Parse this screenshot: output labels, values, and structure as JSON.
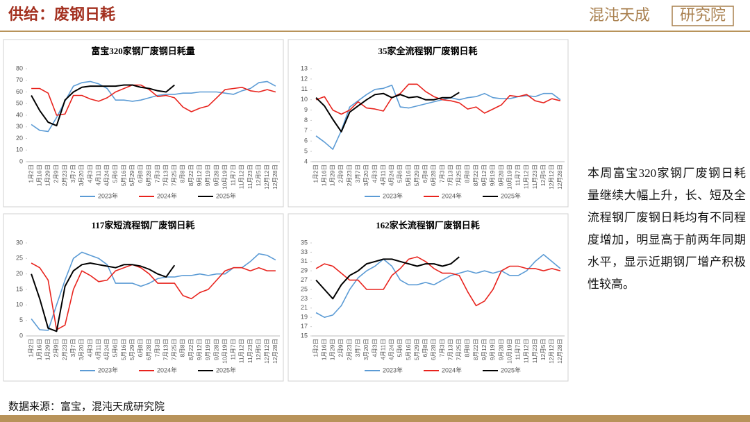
{
  "header": {
    "title": "供给：废钢日耗",
    "logo": "混沌天成",
    "logo_box": "研究院"
  },
  "note": "本周富宝320家钢厂废钢日耗量继续大幅上升，长、短及全流程钢厂废钢日耗均有不同程度增加，明显高于前两年同期水平，显示近期钢厂增产积极性较高。",
  "source": "数据来源：富宝，混沌天成研究院",
  "chart_data": [
    {
      "type": "line",
      "title": "富宝320家钢厂废钢日耗量",
      "categories": [
        "1月2日",
        "1月16日",
        "1月29日",
        "2月9日",
        "2月23日",
        "3月7日",
        "3月20日",
        "4月3日",
        "4月11日",
        "4月24日",
        "5月6日",
        "5月16日",
        "5月29日",
        "6月8日",
        "6月28日",
        "7月3日",
        "7月13日",
        "7月25日",
        "8月8日",
        "8月22日",
        "9月12日",
        "9月19日",
        "9月28日",
        "10月19日",
        "11月7日",
        "11月12日",
        "11月23日",
        "12月5日",
        "12月12日",
        "12月28日"
      ],
      "ylim": [
        0,
        80
      ],
      "yticks": [
        0,
        10,
        20,
        30,
        40,
        50,
        60,
        70,
        80
      ],
      "series": [
        {
          "name": "2023年",
          "color": "#5b9bd5",
          "values": [
            32,
            27,
            26,
            38,
            52,
            65,
            68,
            69,
            67,
            63,
            53,
            53,
            52,
            53,
            55,
            57,
            58,
            58,
            59,
            59,
            60,
            60,
            60,
            59,
            58,
            61,
            63,
            68,
            69,
            65
          ]
        },
        {
          "name": "2024年",
          "color": "#e8231d",
          "values": [
            63,
            63,
            59,
            40,
            41,
            57,
            57,
            54,
            52,
            55,
            60,
            63,
            66,
            66,
            62,
            56,
            57,
            55,
            47,
            43,
            46,
            48,
            55,
            62,
            63,
            64,
            61,
            60,
            62,
            60
          ]
        },
        {
          "name": "2025年",
          "color": "#000000",
          "values": [
            57,
            44,
            34,
            31,
            53,
            60,
            64,
            65,
            65,
            65,
            65,
            66,
            66,
            64,
            63,
            61,
            60,
            66,
            null,
            null,
            null,
            null,
            null,
            null,
            null,
            null,
            null,
            null,
            null,
            null
          ]
        }
      ]
    },
    {
      "type": "line",
      "title": "35家全流程钢厂废钢日耗",
      "categories": [
        "1月2日",
        "1月16日",
        "1月29日",
        "2月9日",
        "2月23日",
        "3月7日",
        "3月20日",
        "4月3日",
        "4月11日",
        "4月24日",
        "5月6日",
        "5月16日",
        "5月29日",
        "6月8日",
        "6月28日",
        "7月3日",
        "7月13日",
        "7月25日",
        "8月8日",
        "8月22日",
        "9月12日",
        "9月19日",
        "9月28日",
        "10月19日",
        "11月7日",
        "11月12日",
        "11月23日",
        "12月5日",
        "12月12日",
        "12月28日"
      ],
      "ylim": [
        4,
        13
      ],
      "yticks": [
        4,
        5,
        6,
        7,
        8,
        9,
        10,
        11,
        12,
        13
      ],
      "series": [
        {
          "name": "2023年",
          "color": "#5b9bd5",
          "values": [
            6.5,
            5.9,
            5.2,
            7.0,
            9.3,
            9.9,
            10.5,
            11.0,
            11.1,
            11.4,
            9.3,
            9.2,
            9.4,
            9.6,
            9.8,
            10.0,
            10.2,
            10.0,
            10.2,
            10.3,
            10.6,
            10.2,
            10.1,
            10.1,
            10.3,
            10.4,
            10.3,
            10.6,
            10.6,
            10.0
          ]
        },
        {
          "name": "2024年",
          "color": "#e8231d",
          "values": [
            10.0,
            10.3,
            9.0,
            8.6,
            9.0,
            9.8,
            9.2,
            9.1,
            8.9,
            10.2,
            10.6,
            11.5,
            11.5,
            10.8,
            10.3,
            10.0,
            9.9,
            9.7,
            9.1,
            9.3,
            8.7,
            9.1,
            9.5,
            10.4,
            10.3,
            10.5,
            9.9,
            9.7,
            10.1,
            9.9
          ]
        },
        {
          "name": "2025年",
          "color": "#000000",
          "values": [
            10.2,
            9.4,
            8.1,
            6.9,
            8.8,
            9.4,
            10.0,
            10.5,
            10.6,
            10.2,
            10.5,
            10.2,
            10.3,
            10.0,
            10.0,
            10.2,
            10.2,
            10.7,
            null,
            null,
            null,
            null,
            null,
            null,
            null,
            null,
            null,
            null,
            null,
            null
          ]
        }
      ]
    },
    {
      "type": "line",
      "title": "117家短流程钢厂废钢日耗",
      "categories": [
        "1月2日",
        "1月16日",
        "1月29日",
        "2月9日",
        "2月23日",
        "3月7日",
        "3月20日",
        "4月3日",
        "4月11日",
        "4月24日",
        "5月6日",
        "5月16日",
        "5月29日",
        "6月8日",
        "6月28日",
        "7月3日",
        "7月13日",
        "7月25日",
        "8月8日",
        "8月22日",
        "9月12日",
        "9月19日",
        "9月28日",
        "10月19日",
        "11月7日",
        "11月12日",
        "11月23日",
        "12月5日",
        "12月12日",
        "12月28日"
      ],
      "ylim": [
        0,
        30
      ],
      "yticks": [
        0,
        5,
        10,
        15,
        20,
        25,
        30
      ],
      "series": [
        {
          "name": "2023年",
          "color": "#5b9bd5",
          "values": [
            5.5,
            2,
            1.8,
            10,
            18,
            25,
            27,
            26,
            25,
            23,
            17,
            17,
            17,
            16,
            17,
            18.5,
            19,
            19,
            19.5,
            19.5,
            20,
            19.5,
            20,
            20,
            22,
            22,
            24,
            26.5,
            26,
            24.5
          ]
        },
        {
          "name": "2024年",
          "color": "#e8231d",
          "values": [
            23.5,
            22,
            18,
            2,
            3.5,
            15,
            21,
            19.5,
            17.5,
            18,
            21,
            22,
            23,
            22,
            20,
            17,
            17,
            17,
            13,
            12,
            14,
            15,
            18,
            21,
            22,
            22,
            21,
            22,
            21,
            21
          ]
        },
        {
          "name": "2025年",
          "color": "#000000",
          "values": [
            20,
            12,
            2.5,
            1.5,
            16,
            21,
            23,
            23.5,
            23,
            22.5,
            22,
            23,
            23,
            22.5,
            21.5,
            20,
            19,
            22.8,
            null,
            null,
            null,
            null,
            null,
            null,
            null,
            null,
            null,
            null,
            null,
            null
          ]
        }
      ]
    },
    {
      "type": "line",
      "title": "162家长流程钢厂废钢日耗",
      "categories": [
        "1月2日",
        "1月16日",
        "1月29日",
        "2月9日",
        "2月23日",
        "3月7日",
        "3月20日",
        "4月3日",
        "4月11日",
        "4月24日",
        "5月6日",
        "5月16日",
        "5月29日",
        "6月8日",
        "6月28日",
        "7月3日",
        "7月13日",
        "7月25日",
        "8月8日",
        "8月22日",
        "9月12日",
        "9月19日",
        "9月28日",
        "10月19日",
        "11月7日",
        "11月12日",
        "11月23日",
        "12月5日",
        "12月12日",
        "12月28日"
      ],
      "ylim": [
        15,
        35
      ],
      "yticks": [
        15,
        17,
        19,
        21,
        23,
        25,
        27,
        29,
        31,
        33,
        35
      ],
      "series": [
        {
          "name": "2023年",
          "color": "#5b9bd5",
          "values": [
            20,
            19,
            19.5,
            21.5,
            25,
            27.5,
            29,
            30,
            31.5,
            30,
            27,
            26,
            26,
            26.5,
            26,
            27,
            28,
            28.5,
            29,
            28.5,
            29,
            28.5,
            29,
            28,
            28,
            29,
            31,
            32.5,
            31,
            29.5
          ]
        },
        {
          "name": "2024年",
          "color": "#e8231d",
          "values": [
            29.5,
            30.5,
            30,
            28.5,
            27,
            27,
            25,
            25,
            25,
            28,
            29.5,
            31.5,
            32,
            31,
            29.5,
            28.5,
            28.5,
            28,
            24.5,
            21.5,
            22.5,
            25,
            29,
            30,
            30,
            29.5,
            29.5,
            29,
            29.5,
            29
          ]
        },
        {
          "name": "2025年",
          "color": "#000000",
          "values": [
            27,
            25,
            23,
            26,
            28,
            29,
            30.5,
            31,
            31.5,
            31.5,
            31,
            30.5,
            30,
            30.5,
            30.5,
            30,
            30.5,
            32,
            null,
            null,
            null,
            null,
            null,
            null,
            null,
            null,
            null,
            null,
            null,
            null
          ]
        }
      ]
    }
  ]
}
